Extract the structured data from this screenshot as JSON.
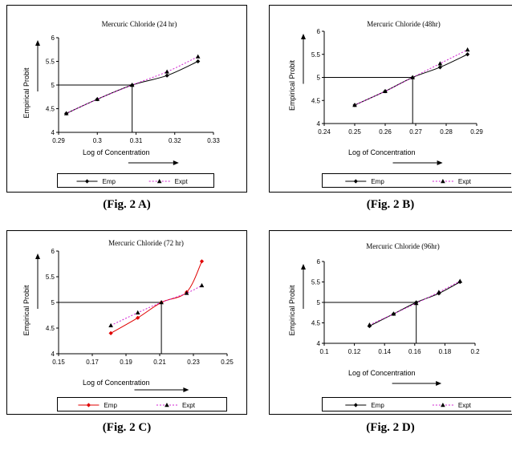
{
  "chart_data": [
    {
      "type": "line",
      "panel_id": "A",
      "title": "Mercuric Chloride (24 hr)",
      "xlabel": "Log of Concentration",
      "ylabel": "Empirical Probit",
      "xlim": [
        0.29,
        0.33
      ],
      "ylim": [
        4,
        6
      ],
      "xticks": [
        "0.29",
        "0.3",
        "0.31",
        "0.32",
        "0.33"
      ],
      "yticks": [
        "4",
        "4.5",
        "5",
        "5.5",
        "6"
      ],
      "ref_point": [
        0.309,
        5.0
      ],
      "legend": [
        "Emp",
        "Expt"
      ],
      "caption": "(Fig. 2 A)",
      "series": [
        {
          "name": "Emp",
          "color": "#000000",
          "marker": "diamond",
          "dash": "",
          "x": [
            0.292,
            0.3,
            0.309,
            0.318,
            0.326
          ],
          "y": [
            4.4,
            4.7,
            5.0,
            5.2,
            5.5
          ]
        },
        {
          "name": "Expt",
          "color": "#d020d0",
          "marker": "triangle",
          "dash": "2,2",
          "x": [
            0.292,
            0.3,
            0.309,
            0.318,
            0.326
          ],
          "y": [
            4.4,
            4.7,
            5.0,
            5.28,
            5.6
          ]
        }
      ]
    },
    {
      "type": "line",
      "panel_id": "B",
      "title": "Mercuric Chloride (48hr)",
      "xlabel": "Log of Concentration",
      "ylabel": "Empirical Probit",
      "xlim": [
        0.24,
        0.29
      ],
      "ylim": [
        4,
        6
      ],
      "xticks": [
        "0.24",
        "0.25",
        "0.26",
        "0.27",
        "0.28",
        "0.29"
      ],
      "yticks": [
        "4",
        "4.5",
        "5",
        "5.5",
        "6"
      ],
      "ref_point": [
        0.269,
        5.0
      ],
      "legend": [
        "Emp",
        "Expt"
      ],
      "caption": "(Fig. 2 B)",
      "series": [
        {
          "name": "Emp",
          "color": "#000000",
          "marker": "diamond",
          "dash": "",
          "x": [
            0.25,
            0.26,
            0.269,
            0.278,
            0.287
          ],
          "y": [
            4.4,
            4.7,
            5.0,
            5.22,
            5.5
          ]
        },
        {
          "name": "Expt",
          "color": "#d020d0",
          "marker": "triangle",
          "dash": "2,2",
          "x": [
            0.25,
            0.26,
            0.269,
            0.278,
            0.287
          ],
          "y": [
            4.4,
            4.7,
            5.0,
            5.3,
            5.6
          ]
        }
      ]
    },
    {
      "type": "line",
      "panel_id": "C",
      "title": "Mercuric Chloride (72 hr)",
      "xlabel": "Log of Concentration",
      "ylabel": "Empirical Probit",
      "xlim": [
        0.15,
        0.25
      ],
      "ylim": [
        4,
        6
      ],
      "xticks": [
        "0.15",
        "0.17",
        "0.19",
        "0.21",
        "0.23",
        "0.25"
      ],
      "yticks": [
        "4",
        "4.5",
        "5",
        "5.5",
        "6"
      ],
      "ref_point": [
        0.211,
        5.0
      ],
      "legend": [
        "Emp",
        "Expt"
      ],
      "caption": "(Fig. 2 C)",
      "series": [
        {
          "name": "Emp",
          "color": "#e00000",
          "marker": "diamond",
          "dash": "",
          "x": [
            0.181,
            0.197,
            0.211,
            0.226,
            0.235
          ],
          "y": [
            4.4,
            4.7,
            5.0,
            5.2,
            5.8
          ]
        },
        {
          "name": "Expt",
          "color": "#d020d0",
          "marker": "triangle",
          "dash": "2,2",
          "x": [
            0.181,
            0.197,
            0.211,
            0.226,
            0.235
          ],
          "y": [
            4.55,
            4.8,
            5.0,
            5.18,
            5.33
          ]
        }
      ]
    },
    {
      "type": "line",
      "panel_id": "D",
      "title": "Mercuric Chloride (96hr)",
      "xlabel": "Log of Concentration",
      "ylabel": "Empirical Probit",
      "xlim": [
        0.1,
        0.2
      ],
      "ylim": [
        4,
        6
      ],
      "xticks": [
        "0.1",
        "0.12",
        "0.14",
        "0.16",
        "0.18",
        "0.2"
      ],
      "yticks": [
        "4",
        "4.5",
        "5",
        "5.5",
        "6"
      ],
      "ref_point": [
        0.161,
        5.0
      ],
      "legend": [
        "Emp",
        "Expt"
      ],
      "caption": "(Fig. 2 D)",
      "series": [
        {
          "name": "Emp",
          "color": "#000000",
          "marker": "diamond",
          "dash": "",
          "x": [
            0.13,
            0.146,
            0.161,
            0.176,
            0.19
          ],
          "y": [
            4.42,
            4.72,
            5.0,
            5.22,
            5.5
          ]
        },
        {
          "name": "Expt",
          "color": "#d020d0",
          "marker": "triangle",
          "dash": "2,2",
          "x": [
            0.13,
            0.146,
            0.161,
            0.176,
            0.19
          ],
          "y": [
            4.45,
            4.72,
            4.98,
            5.25,
            5.52
          ]
        }
      ]
    }
  ]
}
